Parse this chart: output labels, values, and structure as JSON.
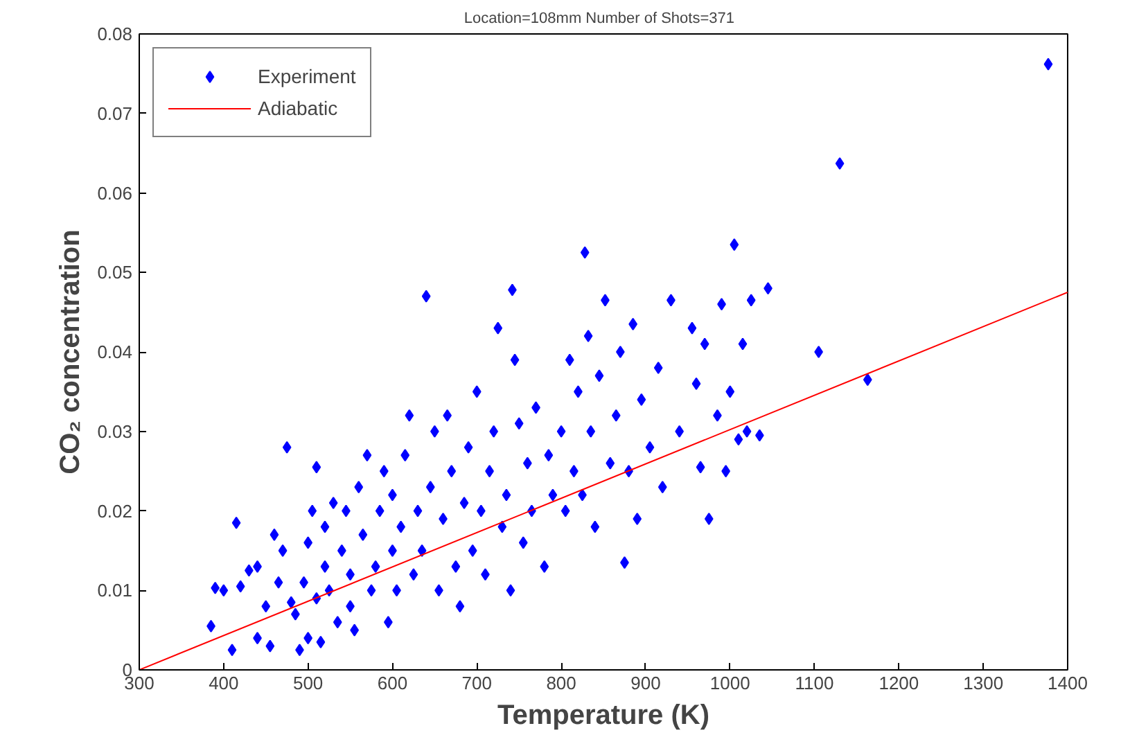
{
  "chart_data": {
    "type": "scatter",
    "title": "Location=108mm   Number of Shots=371",
    "xlabel": "Temperature (K)",
    "ylabel": "CO₂ concentration",
    "xlim": [
      300,
      1400
    ],
    "ylim": [
      0,
      0.08
    ],
    "xticks": [
      300,
      400,
      500,
      600,
      700,
      800,
      900,
      1000,
      1100,
      1200,
      1300,
      1400
    ],
    "yticks": [
      0,
      0.01,
      0.02,
      0.03,
      0.04,
      0.05,
      0.06,
      0.07,
      0.08
    ],
    "grid": false,
    "legend": "top left",
    "series": [
      {
        "name": "Experiment",
        "marker": "diamond",
        "color": "#0000ff",
        "x": [
          385,
          390,
          400,
          410,
          415,
          420,
          430,
          440,
          440,
          450,
          455,
          460,
          465,
          470,
          475,
          480,
          485,
          490,
          495,
          500,
          500,
          505,
          510,
          510,
          515,
          520,
          520,
          525,
          530,
          535,
          540,
          545,
          550,
          550,
          555,
          560,
          565,
          570,
          575,
          580,
          585,
          590,
          595,
          600,
          600,
          605,
          610,
          615,
          620,
          625,
          630,
          635,
          640,
          645,
          650,
          655,
          660,
          665,
          670,
          675,
          680,
          685,
          690,
          695,
          700,
          705,
          710,
          715,
          720,
          725,
          730,
          735,
          740,
          742,
          745,
          750,
          755,
          760,
          765,
          770,
          780,
          785,
          790,
          800,
          805,
          810,
          815,
          820,
          825,
          828,
          832,
          835,
          840,
          845,
          852,
          858,
          865,
          870,
          875,
          880,
          885,
          890,
          895,
          905,
          915,
          920,
          930,
          940,
          955,
          960,
          965,
          970,
          975,
          985,
          990,
          995,
          1000,
          1005,
          1010,
          1015,
          1020,
          1025,
          1035,
          1045,
          1105,
          1130,
          1163,
          1377
        ],
        "values": [
          0.0055,
          0.0103,
          0.01,
          0.0025,
          0.0185,
          0.0105,
          0.0125,
          0.004,
          0.013,
          0.008,
          0.003,
          0.017,
          0.011,
          0.015,
          0.028,
          0.0085,
          0.007,
          0.0025,
          0.011,
          0.016,
          0.004,
          0.02,
          0.0255,
          0.009,
          0.0035,
          0.013,
          0.018,
          0.01,
          0.021,
          0.006,
          0.015,
          0.02,
          0.012,
          0.008,
          0.005,
          0.023,
          0.017,
          0.027,
          0.01,
          0.013,
          0.02,
          0.025,
          0.006,
          0.015,
          0.022,
          0.01,
          0.018,
          0.027,
          0.032,
          0.012,
          0.02,
          0.015,
          0.047,
          0.023,
          0.03,
          0.01,
          0.019,
          0.032,
          0.025,
          0.013,
          0.008,
          0.021,
          0.028,
          0.015,
          0.035,
          0.02,
          0.012,
          0.025,
          0.03,
          0.043,
          0.018,
          0.022,
          0.01,
          0.0478,
          0.039,
          0.031,
          0.016,
          0.026,
          0.02,
          0.033,
          0.013,
          0.027,
          0.022,
          0.03,
          0.02,
          0.039,
          0.025,
          0.035,
          0.022,
          0.0525,
          0.042,
          0.03,
          0.018,
          0.037,
          0.0465,
          0.026,
          0.032,
          0.04,
          0.0135,
          0.025,
          0.0435,
          0.019,
          0.034,
          0.028,
          0.038,
          0.023,
          0.0465,
          0.03,
          0.043,
          0.036,
          0.0255,
          0.041,
          0.019,
          0.032,
          0.046,
          0.025,
          0.035,
          0.0535,
          0.029,
          0.041,
          0.03,
          0.0465,
          0.0295,
          0.048,
          0.04,
          0.0637,
          0.0365,
          0.0762
        ]
      },
      {
        "name": "Adiabatic",
        "type": "line",
        "color": "#ff0000",
        "line_style": "solid",
        "x": [
          300,
          1400
        ],
        "values": [
          0,
          0.0475
        ]
      }
    ]
  }
}
